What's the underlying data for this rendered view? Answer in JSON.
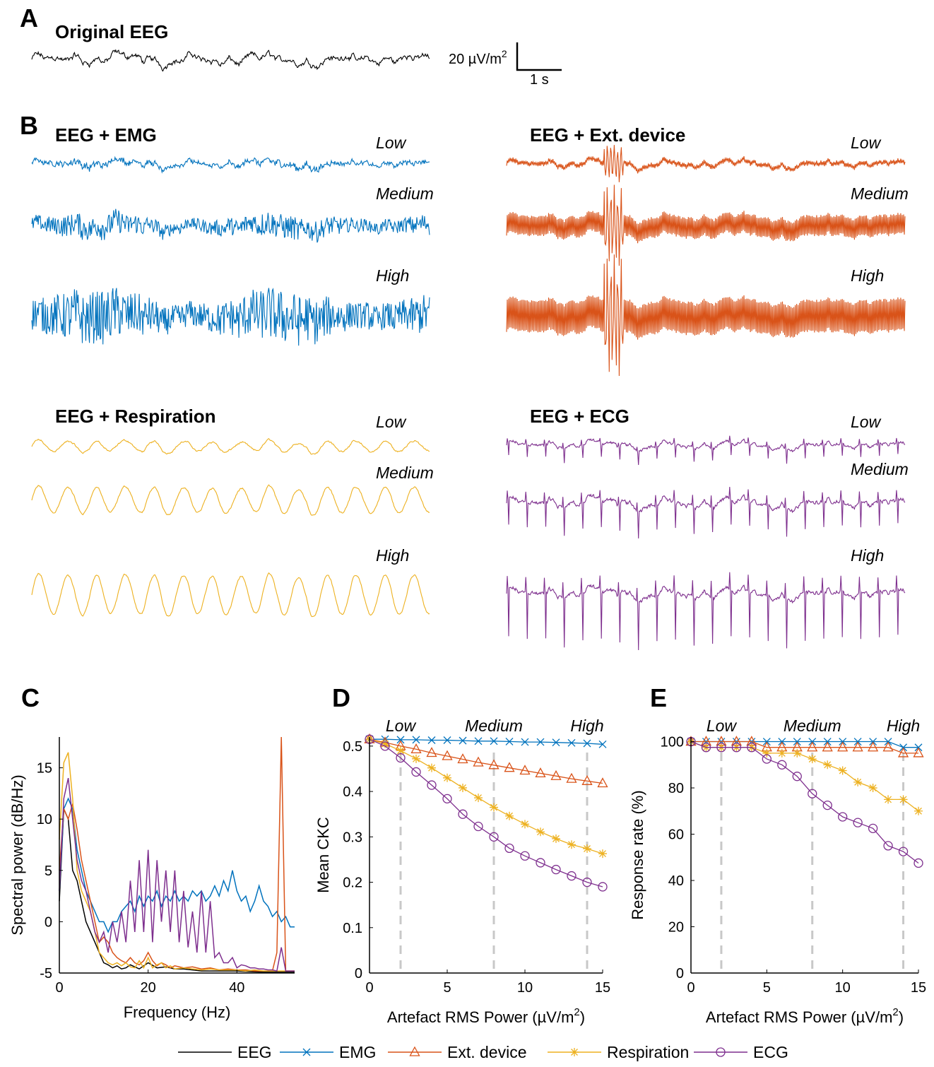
{
  "colors": {
    "EEG": "#000000",
    "EMG": "#0072BD",
    "Ext. device": "#D95319",
    "Respiration": "#EDB120",
    "ECG": "#7E2F8E",
    "guide": "#c8c8c8"
  },
  "panelA": {
    "letter": "A",
    "title": "Original EEG",
    "scale_amp": "20 µV/m",
    "scale_amp_sup": "2",
    "scale_time": "1 s"
  },
  "panelB": {
    "letter": "B",
    "levels": [
      "Low",
      "Medium",
      "High"
    ],
    "blocks": [
      {
        "title": "EEG + EMG",
        "series": "EMG"
      },
      {
        "title": "EEG + Ext. device",
        "series": "Ext. device"
      },
      {
        "title": "EEG + Respiration",
        "series": "Respiration"
      },
      {
        "title": "EEG + ECG",
        "series": "ECG"
      }
    ]
  },
  "legend": [
    "EEG",
    "EMG",
    "Ext. device",
    "Respiration",
    "ECG"
  ],
  "chart_data": [
    {
      "id": "C",
      "type": "line",
      "letter": "C",
      "xlabel": "Frequency (Hz)",
      "ylabel": "Spectral power (dB/Hz)",
      "xlim": [
        0,
        53
      ],
      "ylim": [
        -5,
        18
      ],
      "xticks": [
        0,
        20,
        40
      ],
      "yticks": [
        -5,
        0,
        5,
        10,
        15
      ],
      "series": [
        {
          "name": "EEG",
          "x": [
            0,
            1,
            2,
            3,
            4,
            5,
            6,
            7,
            8,
            9,
            10,
            11,
            12,
            13,
            14,
            15,
            16,
            18,
            20,
            22,
            24,
            26,
            28,
            30,
            32,
            35,
            40,
            45,
            50,
            53
          ],
          "values": [
            2,
            11,
            10,
            5,
            4,
            2,
            0,
            -1,
            -2,
            -3,
            -4,
            -4.2,
            -4.5,
            -4.3,
            -4.6,
            -4.5,
            -4.2,
            -4.6,
            -4,
            -4.5,
            -4.4,
            -4.6,
            -4.6,
            -4.7,
            -4.8,
            -4.8,
            -4.8,
            -4.9,
            -4.9,
            -4.9
          ]
        },
        {
          "name": "EMG",
          "x": [
            0,
            1,
            2,
            3,
            4,
            5,
            6,
            7,
            8,
            9,
            10,
            11,
            12,
            13,
            14,
            15,
            16,
            17,
            18,
            19,
            20,
            21,
            22,
            23,
            24,
            25,
            26,
            27,
            28,
            29,
            30,
            31,
            32,
            33,
            34,
            35,
            36,
            37,
            38,
            39,
            40,
            41,
            42,
            43,
            44,
            45,
            46,
            47,
            48,
            49,
            50,
            51,
            52,
            53
          ],
          "values": [
            3,
            11,
            12,
            11,
            7,
            5,
            3,
            2,
            1,
            0,
            0,
            -1,
            0,
            0,
            1,
            1.5,
            2,
            1,
            2.5,
            1.5,
            2.5,
            2,
            3,
            1.5,
            2.5,
            2,
            3,
            2,
            2.5,
            2,
            3,
            2.5,
            3,
            2,
            2.5,
            3.5,
            2.5,
            4,
            3,
            5,
            3,
            2,
            2.5,
            1,
            2,
            3.5,
            2,
            1.5,
            0.5,
            1,
            0,
            0.5,
            -0.5,
            -0.5
          ]
        },
        {
          "name": "Ext. device",
          "x": [
            0,
            1,
            2,
            3,
            4,
            5,
            6,
            7,
            8,
            9,
            10,
            11,
            12,
            13,
            14,
            15,
            16,
            17,
            18,
            19,
            20,
            21,
            22,
            23,
            24,
            25,
            26,
            28,
            30,
            32,
            34,
            36,
            38,
            40,
            42,
            44,
            46,
            48,
            49,
            50,
            51,
            52,
            53
          ],
          "values": [
            5,
            11,
            10,
            11.5,
            9,
            6,
            4,
            2,
            0,
            -2,
            -1.5,
            -2,
            -3,
            -3.5,
            -3.8,
            -4,
            -3.5,
            -4,
            -4.2,
            -3.8,
            -3,
            -3.8,
            -4.3,
            -4,
            -4.2,
            -4.5,
            -4.3,
            -4.5,
            -4.4,
            -4.6,
            -4.5,
            -4.7,
            -4.6,
            -4.7,
            -4.7,
            -4.8,
            -4.8,
            -4.8,
            -3,
            18,
            -4.8,
            -4.8,
            -4.8
          ]
        },
        {
          "name": "Respiration",
          "x": [
            0,
            1,
            2,
            3,
            4,
            5,
            6,
            7,
            8,
            9,
            10,
            11,
            12,
            13,
            14,
            15,
            16,
            17,
            18,
            19,
            20,
            21,
            22,
            23,
            24,
            25,
            26,
            28,
            30,
            32,
            34,
            36,
            38,
            40,
            42,
            44,
            46,
            48,
            50,
            52,
            53
          ],
          "values": [
            8,
            15.5,
            16.5,
            12,
            5,
            3,
            2,
            1,
            -1,
            -3,
            -3.5,
            -4,
            -4.2,
            -4,
            -4.3,
            -4,
            -4.4,
            -4.5,
            -3.8,
            -4.5,
            -3.5,
            -4.5,
            -4.2,
            -4,
            -4.5,
            -4.3,
            -4.6,
            -4.5,
            -4.6,
            -4.7,
            -4.6,
            -4.7,
            -4.7,
            -4.7,
            -4.8,
            -4.7,
            -4.8,
            -4.8,
            -4.8,
            -4.8,
            -4.8
          ]
        },
        {
          "name": "ECG",
          "x": [
            0,
            1,
            2,
            3,
            4,
            5,
            6,
            7,
            8,
            9,
            10,
            11,
            12,
            13,
            14,
            15,
            16,
            17,
            18,
            19,
            20,
            21,
            22,
            23,
            24,
            25,
            26,
            27,
            28,
            29,
            30,
            31,
            32,
            33,
            34,
            35,
            36,
            37,
            38,
            39,
            40,
            41,
            42,
            43,
            44,
            45,
            46,
            47,
            48,
            49,
            50,
            51,
            52,
            53
          ],
          "values": [
            3,
            12,
            14,
            10,
            6,
            4,
            3,
            1,
            -1,
            -2,
            -1,
            -3,
            0,
            -2,
            1,
            -2,
            4,
            -1,
            6,
            -1,
            7,
            -2,
            6,
            0,
            5,
            -1,
            5,
            -2,
            3,
            -2.5,
            1,
            -3,
            3,
            -3,
            2,
            -3.5,
            -3,
            -4,
            -4,
            -3.5,
            -4.5,
            -4.2,
            -4.3,
            -4.5,
            -4.5,
            -4.6,
            -4.6,
            -4.7,
            -4.7,
            -4.8,
            -2.5,
            -4.8,
            -4.8,
            -4.8
          ]
        }
      ]
    },
    {
      "id": "D",
      "type": "line",
      "letter": "D",
      "xlabel": "Artefact RMS Power (µV/m",
      "xlabel_sup": "2",
      "xlabel_end": ")",
      "ylabel": "Mean CKC",
      "xlim": [
        0,
        15
      ],
      "ylim": [
        0,
        0.52
      ],
      "xticks": [
        0,
        5,
        10,
        15
      ],
      "yticks": [
        0,
        0.1,
        0.2,
        0.3,
        0.4,
        0.5
      ],
      "ytick_labels": [
        "0",
        "0.1",
        "0.2",
        "0.3",
        "0.4",
        "0.5"
      ],
      "level_labels": [
        {
          "label": "Low",
          "x": 2
        },
        {
          "label": "Medium",
          "x": 8
        },
        {
          "label": "High",
          "x": 14
        }
      ],
      "x": [
        0,
        1,
        2,
        3,
        4,
        5,
        6,
        7,
        8,
        9,
        10,
        11,
        12,
        13,
        14,
        15
      ],
      "series": [
        {
          "name": "EMG",
          "marker": "x",
          "values": [
            0.515,
            0.515,
            0.514,
            0.514,
            0.513,
            0.513,
            0.512,
            0.511,
            0.511,
            0.51,
            0.509,
            0.509,
            0.508,
            0.507,
            0.506,
            0.504
          ]
        },
        {
          "name": "Ext. device",
          "marker": "triangle",
          "values": [
            0.515,
            0.508,
            0.5,
            0.493,
            0.485,
            0.478,
            0.471,
            0.464,
            0.458,
            0.452,
            0.446,
            0.44,
            0.434,
            0.428,
            0.423,
            0.418
          ]
        },
        {
          "name": "Respiration",
          "marker": "star",
          "values": [
            0.515,
            0.505,
            0.49,
            0.472,
            0.452,
            0.43,
            0.408,
            0.386,
            0.365,
            0.346,
            0.328,
            0.311,
            0.296,
            0.283,
            0.274,
            0.263
          ]
        },
        {
          "name": "ECG",
          "marker": "circle",
          "values": [
            0.515,
            0.5,
            0.474,
            0.443,
            0.414,
            0.384,
            0.35,
            0.323,
            0.3,
            0.275,
            0.258,
            0.243,
            0.228,
            0.214,
            0.2,
            0.19
          ]
        }
      ]
    },
    {
      "id": "E",
      "type": "line",
      "letter": "E",
      "xlabel": "Artefact RMS Power (µV/m",
      "xlabel_sup": "2",
      "xlabel_end": ")",
      "ylabel": "Response rate (%)",
      "xlim": [
        0,
        15
      ],
      "ylim": [
        0,
        102
      ],
      "xticks": [
        0,
        5,
        10,
        15
      ],
      "yticks": [
        0,
        20,
        40,
        60,
        80,
        100
      ],
      "ytick_labels": [
        "0",
        "20",
        "40",
        "60",
        "80",
        "100"
      ],
      "level_labels": [
        {
          "label": "Low",
          "x": 2
        },
        {
          "label": "Medium",
          "x": 8
        },
        {
          "label": "High",
          "x": 14
        }
      ],
      "x": [
        0,
        1,
        2,
        3,
        4,
        5,
        6,
        7,
        8,
        9,
        10,
        11,
        12,
        13,
        14,
        15
      ],
      "series": [
        {
          "name": "EMG",
          "marker": "x",
          "values": [
            100,
            100,
            100,
            100,
            100,
            100,
            100,
            100,
            100,
            100,
            100,
            100,
            100,
            100,
            97.5,
            97.5
          ]
        },
        {
          "name": "Ext. device",
          "marker": "triangle",
          "values": [
            100,
            100,
            100,
            100,
            100,
            97.5,
            97.5,
            97.5,
            97.5,
            97.5,
            97.5,
            97.5,
            97.5,
            97.5,
            95,
            95
          ]
        },
        {
          "name": "Respiration",
          "marker": "star",
          "values": [
            100,
            97.5,
            97.5,
            97.5,
            97.5,
            95,
            95,
            95,
            92.5,
            90,
            87.5,
            82.5,
            80,
            75,
            75,
            70
          ]
        },
        {
          "name": "ECG",
          "marker": "circle",
          "values": [
            100,
            97.5,
            97.5,
            97.5,
            97.5,
            92.5,
            90,
            85,
            77.5,
            72.5,
            67.5,
            65,
            62.5,
            55,
            52.5,
            47.5
          ]
        }
      ]
    }
  ]
}
